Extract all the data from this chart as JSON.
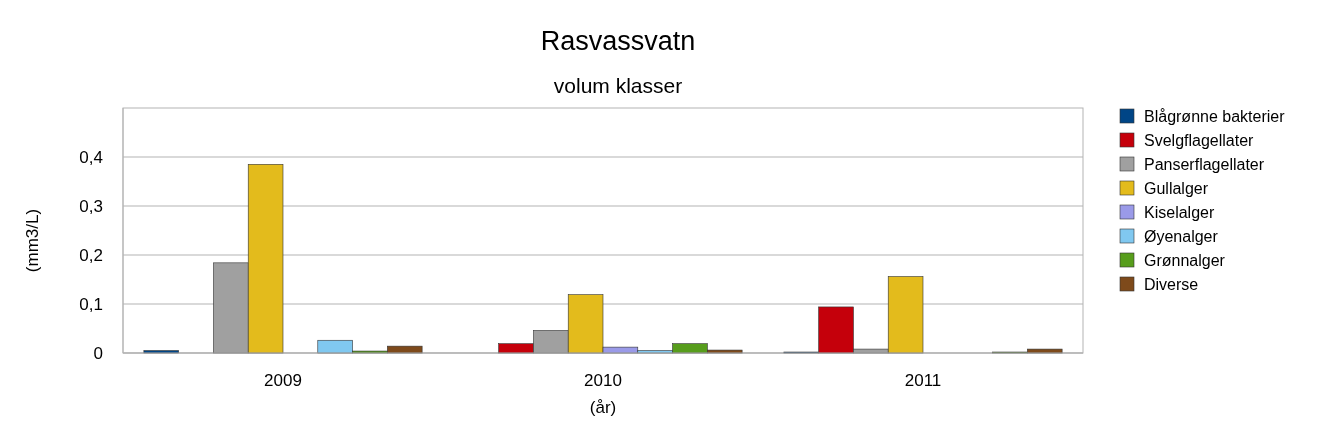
{
  "chart_data": {
    "type": "bar",
    "title": "Rasvassvatn",
    "subtitle": "volum klasser",
    "xlabel": "(år)",
    "ylabel": "(mm3/L)",
    "categories": [
      "2009",
      "2010",
      "2011"
    ],
    "series": [
      {
        "name": "Blågrønne bakterier",
        "color": "#004586",
        "values": [
          0.005,
          null,
          0.002
        ]
      },
      {
        "name": "Svelgflagellater",
        "color": "#c5000b",
        "values": [
          null,
          0.019,
          0.094
        ]
      },
      {
        "name": "Panserflagellater",
        "color": "#a0a0a0",
        "values": [
          0.184,
          0.046,
          0.008
        ]
      },
      {
        "name": "Gullalger",
        "color": "#e3bb1c",
        "values": [
          0.385,
          0.119,
          0.156
        ]
      },
      {
        "name": "Kiselalger",
        "color": "#9a9ae8",
        "values": [
          null,
          0.012,
          null
        ]
      },
      {
        "name": "Øyenalger",
        "color": "#80c8f0",
        "values": [
          0.026,
          0.005,
          null
        ]
      },
      {
        "name": "Grønnalger",
        "color": "#579d1c",
        "values": [
          0.004,
          0.019,
          0.002
        ]
      },
      {
        "name": "Diverse",
        "color": "#7e4a1b",
        "values": [
          0.014,
          0.006,
          0.008
        ]
      }
    ],
    "ylim": [
      0,
      0.5
    ],
    "yticks": [
      0,
      {
        "value": 0.1,
        "label": "0,1"
      },
      {
        "value": 0.2,
        "label": "0,2"
      },
      {
        "value": 0.3,
        "label": "0,3"
      },
      {
        "value": 0.4,
        "label": "0,4"
      }
    ],
    "grid": "y",
    "legend": "right"
  }
}
